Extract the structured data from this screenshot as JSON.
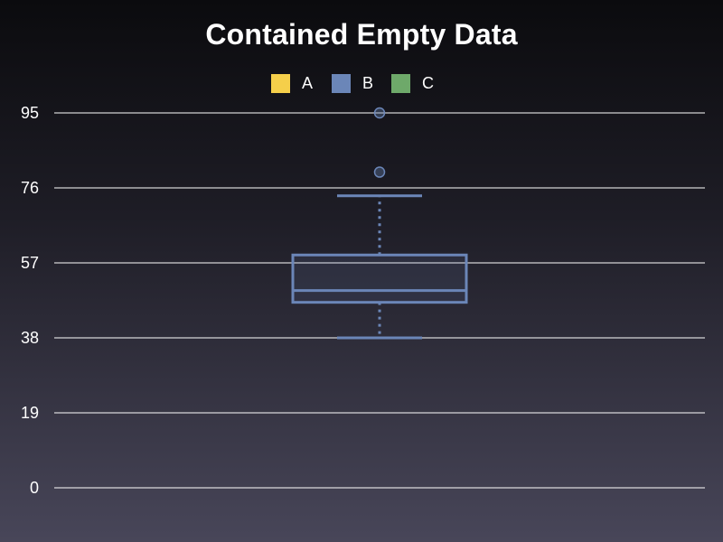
{
  "chart_data": {
    "type": "box",
    "title": "Contained Empty Data",
    "xlabel": "",
    "ylabel": "",
    "ylim": [
      0,
      95
    ],
    "yticks": [
      0,
      19,
      38,
      57,
      76,
      95
    ],
    "grid": true,
    "legend_position": "top-center",
    "series": [
      {
        "name": "A",
        "color": "#f5cf4a",
        "box": null
      },
      {
        "name": "B",
        "color": "#6b86b8",
        "box": {
          "whisker_low": 38,
          "q1": 47,
          "median": 50,
          "q3": 59,
          "whisker_high": 74,
          "outliers": [
            80,
            95
          ]
        }
      },
      {
        "name": "C",
        "color": "#6ea96a",
        "box": null
      }
    ]
  }
}
